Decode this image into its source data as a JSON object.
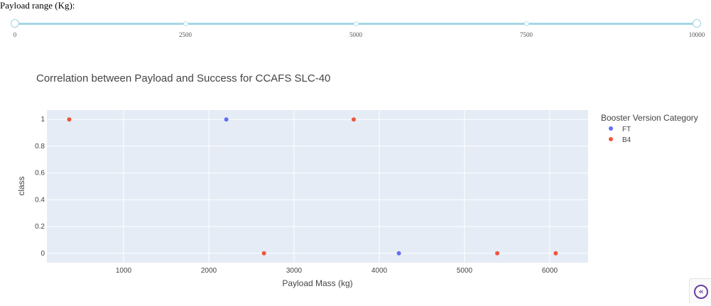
{
  "slider": {
    "label": "Payload range (Kg):",
    "min": 0,
    "max": 10000,
    "value": [
      0,
      10000
    ],
    "marks": [
      "0",
      "2500",
      "5000",
      "7500",
      "10000"
    ]
  },
  "corner_button": {
    "glyph": "«",
    "icon": "chevron-double-left-icon"
  },
  "chart_data": {
    "type": "scatter",
    "title": "Correlation between Payload and Success for CCAFS SLC-40",
    "xlabel": "Payload Mass (kg)",
    "ylabel": "class",
    "xlim": [
      100,
      6450
    ],
    "ylim": [
      -0.07,
      1.07
    ],
    "xticks": [
      1000,
      2000,
      3000,
      4000,
      5000,
      6000
    ],
    "xtick_labels": [
      "1000",
      "2000",
      "3000",
      "4000",
      "5000",
      "6000"
    ],
    "yticks": [
      0,
      0.2,
      0.4,
      0.6,
      0.8,
      1
    ],
    "ytick_labels": [
      "0",
      "0.2",
      "0.4",
      "0.6",
      "0.8",
      "1"
    ],
    "grid": true,
    "legend": {
      "title": "Booster Version Category",
      "position": "right"
    },
    "series": [
      {
        "name": "FT",
        "color": "#636efa",
        "points": [
          [
            2205,
            1
          ],
          [
            4230,
            0
          ]
        ]
      },
      {
        "name": "B4",
        "color": "#ef553b",
        "points": [
          [
            362,
            1
          ],
          [
            2647,
            0
          ],
          [
            3700,
            1
          ],
          [
            5384,
            0
          ],
          [
            6070,
            0
          ]
        ]
      }
    ]
  }
}
